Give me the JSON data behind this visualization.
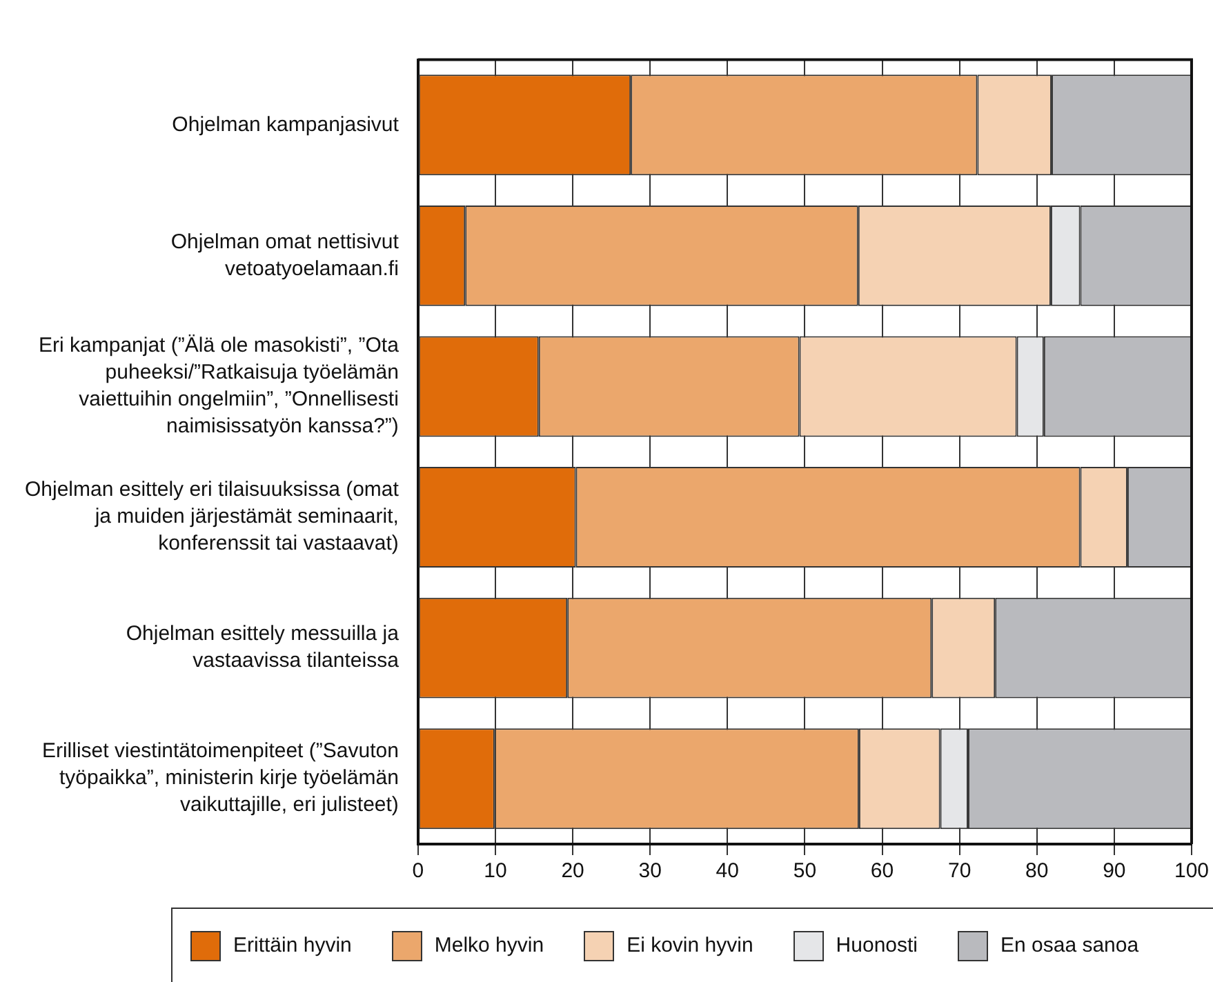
{
  "chart_data": {
    "type": "bar",
    "orientation": "horizontal",
    "stacked": true,
    "categories": [
      "Ohjelman kampanjasivut",
      "Ohjelman omat nettisivut vetoatyoelamaan.fi",
      "Eri kampanjat (”Älä ole masokisti”, ”Ota puheeksi/”Ratkaisuja työelämän vaiettuihin ongelmiin”, ”Onnellisesti naimisissatyön kanssa?”)",
      "Ohjelman esittely eri tilaisuuksissa (omat ja muiden järjestämät seminaarit, konferenssit tai vastaavat)",
      "Ohjelman esittely messuilla ja vastaavissa tilanteissa",
      "Erilliset viestintätoimenpiteet (”Savuton työpaikka”, ministerin kirje työelämän vaikuttajille, eri julisteet)"
    ],
    "series": [
      {
        "name": "Erittäin hyvin",
        "color": "#e06c0a",
        "values": [
          27.5,
          6.1,
          15.6,
          20.4,
          19.3,
          9.9
        ]
      },
      {
        "name": "Melko hyvin",
        "color": "#eba76c",
        "values": [
          44.8,
          50.8,
          33.7,
          65.2,
          47.1,
          47.1
        ]
      },
      {
        "name": "Ei kovin hyvin",
        "color": "#f5d2b3",
        "values": [
          9.6,
          24.9,
          28.1,
          6.1,
          8.2,
          10.5
        ]
      },
      {
        "name": "Huonosti",
        "color": "#e5e6e8",
        "values": [
          0,
          3.8,
          3.5,
          0,
          0,
          3.6
        ]
      },
      {
        "name": "En osaa sanoa",
        "color": "#b9babe",
        "values": [
          18.1,
          14.4,
          19.1,
          8.3,
          25.4,
          28.9
        ]
      }
    ],
    "xlim": [
      0,
      100
    ],
    "xticks": [
      0,
      10,
      20,
      30,
      40,
      50,
      60,
      70,
      80,
      90,
      100
    ],
    "grid": "x",
    "legend": "bottom"
  }
}
